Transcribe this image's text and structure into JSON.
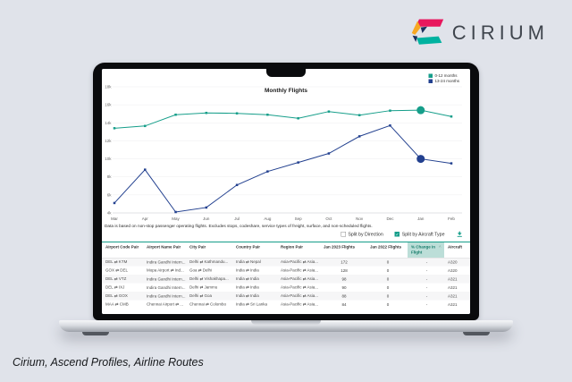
{
  "brand": {
    "name": "CIRIUM",
    "caption": "Cirium, Ascend Profiles, Airline Routes",
    "colors": {
      "pink": "#e8175d",
      "yellow": "#f7a823",
      "teal_logo": "#00b2a0",
      "navy_logo": "#1b2f5e",
      "wordmark": "#3f454d"
    }
  },
  "chart_data": {
    "type": "line",
    "title": "Monthly Flights",
    "x": [
      "Mar",
      "Apr",
      "May",
      "Jun",
      "Jul",
      "Aug",
      "Sep",
      "Oct",
      "Nov",
      "Dec",
      "Jan",
      "Feb"
    ],
    "ylim": [
      4000,
      18000
    ],
    "ytick_step": 2000,
    "grid": true,
    "legend_position": "top-right",
    "series": [
      {
        "name": "0-12 months",
        "color": "#169e8a",
        "values": [
          13400,
          13650,
          14900,
          15100,
          15050,
          14900,
          14500,
          15250,
          14850,
          15350,
          15400,
          14700
        ],
        "highlight_index": 10
      },
      {
        "name": "13-24 months",
        "color": "#22408f",
        "values": [
          5100,
          8800,
          4100,
          4600,
          7100,
          8600,
          9600,
          10600,
          12500,
          13700,
          10000,
          9500
        ],
        "highlight_index": 10
      }
    ]
  },
  "screen": {
    "legend": [
      {
        "label": "0-12 months",
        "color": "#169e8a"
      },
      {
        "label": "13-24 months",
        "color": "#22408f"
      }
    ],
    "footnote": "Data is based on non-stop passenger operating flights. Excludes stops, codeshare, service types of freight, surface, and non-scheduled flights.",
    "controls": {
      "split_by_direction": {
        "label": "Split by Direction",
        "checked": false
      },
      "split_by_aircraft_type": {
        "label": "Split by Aircraft Type",
        "checked": true
      },
      "download_icon_color": "#169e8a"
    },
    "table": {
      "headers": [
        "Airport Code Pair",
        "Airport Name Pair",
        "City Pair",
        "Country Pair",
        "Region Pair",
        "Jan 2023 Flights",
        "Jan 2022 Flights",
        "% Change in Flight",
        "Aircraft"
      ],
      "sorted_column_index": 7,
      "sort_indicator": "^",
      "rows": [
        [
          "DEL ⇄ KTM",
          "Indira Gandhi Intern...",
          "Delhi ⇄ Kathmandu...",
          "India ⇄ Nepal",
          "Asia-Pacific ⇄ Asia...",
          "172",
          "0",
          "-",
          "A320"
        ],
        [
          "GOX ⇄ DEL",
          "Mopa Airport ⇄ Ind...",
          "Goa ⇄ Delhi",
          "India ⇄ India",
          "Asia-Pacific ⇄ Asia...",
          "128",
          "0",
          "-",
          "A320"
        ],
        [
          "DEL ⇄ VTZ",
          "Indira Gandhi Intern...",
          "Delhi ⇄ Vishakhapa...",
          "India ⇄ India",
          "Asia-Pacific ⇄ Asia...",
          "98",
          "0",
          "-",
          "A321"
        ],
        [
          "DEL ⇄ IXJ",
          "Indira Gandhi Intern...",
          "Delhi ⇄ Jammu",
          "India ⇄ India",
          "Asia-Pacific ⇄ Asia...",
          "90",
          "0",
          "-",
          "A321"
        ],
        [
          "DEL ⇄ GOX",
          "Indira Gandhi Intern...",
          "Delhi ⇄ Goa",
          "India ⇄ India",
          "Asia-Pacific ⇄ Asia...",
          "88",
          "0",
          "-",
          "A321"
        ],
        [
          "MAA ⇄ CMB",
          "Chennai Airport ⇄ ...",
          "Chennai ⇄ Colombo",
          "India ⇄ Sri Lanka",
          "Asia-Pacific ⇄ Asia...",
          "84",
          "0",
          "-",
          "A321"
        ]
      ]
    }
  }
}
